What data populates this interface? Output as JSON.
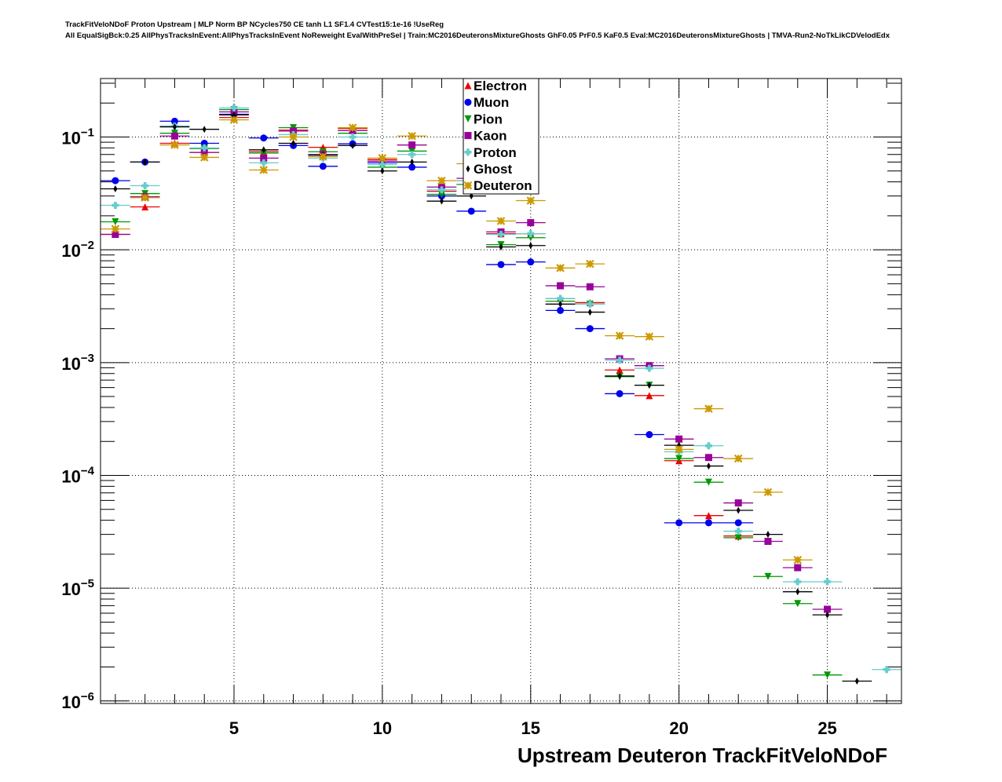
{
  "title_line1": "TrackFitVeloNDoF Proton Upstream | MLP Norm BP NCycles750 CE tanh L1 SF1.4 CVTest15:1e-16 !UseReg",
  "title_line2": "All EqualSigBck:0.25 AllPhysTracksInEvent:AllPhysTracksInEvent NoReweight EvalWithPreSel | Train:MC2016DeuteronsMixtureGhosts GhF0.05 PrF0.5 KaF0.5 Eval:MC2016DeuteronsMixtureGhosts | TMVA-Run2-NoTkLikCDVelodEdx",
  "chart_data": {
    "type": "scatter",
    "title": "TrackFitVeloNDoF Proton Upstream",
    "xlabel": "Upstream Deuteron TrackFitVeloNDoF",
    "ylabel": "",
    "xlim": [
      0.5,
      27.5
    ],
    "ylim": [
      9.5e-07,
      0.33
    ],
    "yscale": "log",
    "grid": true,
    "legend_placement": "top-center",
    "x_ticks": [
      "5",
      "10",
      "15",
      "20",
      "25"
    ],
    "y_ticks": [
      {
        "base": "10",
        "exp": "−1",
        "value": 0.1
      },
      {
        "base": "10",
        "exp": "−2",
        "value": 0.01
      },
      {
        "base": "10",
        "exp": "−3",
        "value": 0.001
      },
      {
        "base": "10",
        "exp": "−4",
        "value": 0.0001
      },
      {
        "base": "10",
        "exp": "−5",
        "value": 1e-05
      },
      {
        "base": "10",
        "exp": "−6",
        "value": 1e-06
      }
    ],
    "x": [
      1,
      2,
      3,
      4,
      5,
      6,
      7,
      8,
      9,
      10,
      11,
      12,
      13,
      14,
      15,
      16,
      17,
      18,
      19,
      20,
      21,
      22,
      23,
      24,
      25,
      26,
      27
    ],
    "series": [
      {
        "name": "Electron",
        "color": "#ee0000",
        "marker": "triangle-up",
        "values": [
          0.0137,
          0.024,
          0.088,
          0.073,
          0.149,
          0.074,
          0.115,
          0.081,
          0.119,
          0.063,
          0.085,
          0.033,
          0.041,
          0.0139,
          0.0139,
          0.0037,
          0.0034,
          0.00086,
          0.00051,
          0.000135,
          4.4e-05,
          2.9e-05,
          null,
          null,
          null,
          null,
          null
        ]
      },
      {
        "name": "Muon",
        "color": "#0000ee",
        "marker": "circle",
        "values": [
          0.041,
          0.06,
          0.138,
          0.088,
          0.159,
          0.098,
          0.084,
          0.055,
          0.087,
          0.059,
          0.054,
          0.03,
          0.022,
          0.0074,
          0.0078,
          0.0029,
          0.002,
          0.00053,
          0.00023,
          3.8e-05,
          3.8e-05,
          3.8e-05,
          null,
          null,
          null,
          null,
          null
        ]
      },
      {
        "name": "Pion",
        "color": "#009900",
        "marker": "triangle-down",
        "values": [
          0.0177,
          0.0315,
          0.108,
          0.079,
          0.175,
          0.072,
          0.121,
          0.074,
          0.108,
          0.054,
          0.075,
          0.031,
          0.038,
          0.0111,
          0.0128,
          0.0035,
          0.0033,
          0.00075,
          0.00063,
          0.000141,
          8.7e-05,
          2.8e-05,
          1.27e-05,
          7.3e-06,
          1.7e-06,
          null,
          null
        ]
      },
      {
        "name": "Kaon",
        "color": "#990099",
        "marker": "square",
        "values": [
          0.0137,
          0.0295,
          0.102,
          0.073,
          0.167,
          0.065,
          0.113,
          0.07,
          0.114,
          0.061,
          0.085,
          0.036,
          0.043,
          0.0144,
          0.0174,
          0.0048,
          0.0047,
          0.00108,
          0.00094,
          0.00021,
          0.000144,
          5.7e-05,
          2.6e-05,
          1.52e-05,
          6.5e-06,
          null,
          null
        ]
      },
      {
        "name": "Proton",
        "color": "#66cccc",
        "marker": "cross",
        "values": [
          0.0248,
          0.037,
          0.125,
          0.08,
          0.181,
          0.059,
          0.105,
          0.065,
          0.1,
          0.057,
          0.07,
          0.034,
          0.041,
          0.0137,
          0.0139,
          0.0037,
          0.0033,
          0.00105,
          0.00089,
          0.000162,
          0.000183,
          3.2e-05,
          null,
          1.14e-05,
          1.14e-05,
          null,
          1.9e-06
        ]
      },
      {
        "name": "Ghost",
        "color": "#000000",
        "marker": "diamond",
        "values": [
          0.0347,
          0.06,
          0.123,
          0.117,
          0.157,
          0.077,
          0.088,
          0.069,
          0.084,
          0.05,
          0.06,
          0.027,
          0.03,
          0.0106,
          0.0109,
          0.0033,
          0.0028,
          0.00076,
          0.00063,
          0.000185,
          0.000121,
          4.9e-05,
          3e-05,
          9.3e-06,
          5.8e-06,
          1.5e-06,
          null
        ]
      },
      {
        "name": "Deuteron",
        "color": "#cc9900",
        "marker": "star",
        "values": [
          0.0153,
          0.029,
          0.085,
          0.066,
          0.142,
          0.051,
          0.1,
          0.067,
          0.121,
          0.065,
          0.102,
          0.041,
          0.058,
          0.018,
          0.0273,
          0.0069,
          0.0075,
          0.00173,
          0.0017,
          0.00017,
          0.00039,
          0.000141,
          7.1e-05,
          1.78e-05,
          null,
          null,
          null
        ]
      }
    ]
  }
}
